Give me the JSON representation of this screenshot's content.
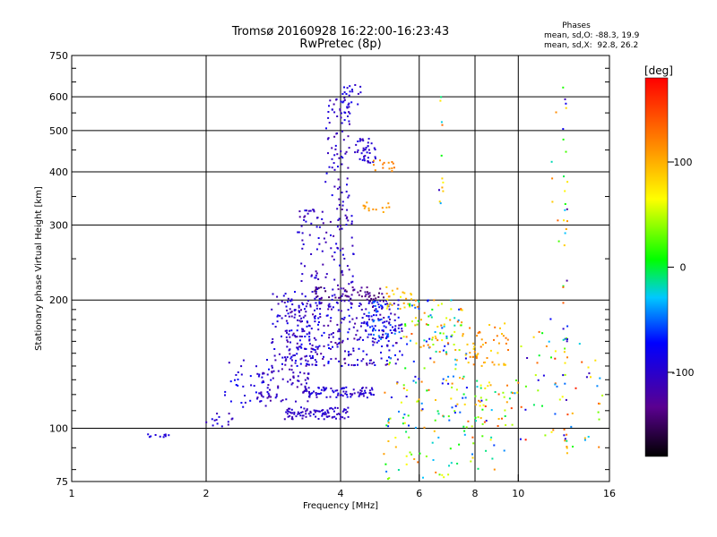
{
  "chart_data": {
    "type": "scatter",
    "title": "Tromsø 20160928 16:22:00-16:23:43",
    "subtitle": "RwPretec (8p)",
    "xlabel": "Frequency [MHz]",
    "ylabel": "Stationary phase Virtual Height [km]",
    "x_scale": "log",
    "y_scale": "log",
    "xlim": [
      1,
      16
    ],
    "ylim": [
      75,
      750
    ],
    "x_ticks": [
      1,
      2,
      4,
      6,
      8,
      10,
      16
    ],
    "x_tick_labels": [
      "1",
      "2",
      "4",
      "6",
      "8",
      "10",
      "16"
    ],
    "y_ticks": [
      75,
      100,
      200,
      300,
      400,
      500,
      600,
      750
    ],
    "y_tick_labels": [
      "75",
      "100",
      "200",
      "300",
      "400",
      "500",
      "600",
      "750"
    ],
    "grid": true,
    "stats": {
      "heading": "Phases",
      "line1": "mean, sd,O: -88.3, 19.9",
      "line2": "mean, sd,X:  92.8, 26.2"
    },
    "colorbar": {
      "label": "[deg]",
      "range": [
        -180,
        180
      ],
      "ticks": [
        100,
        0,
        -100
      ],
      "tick_labels": [
        "100",
        "0",
        "-100"
      ]
    },
    "series": [
      {
        "clusters": [
          {
            "f": [
              1.45,
              1.65
            ],
            "h": [
              95,
              97
            ],
            "n": 10,
            "ph": [
              -100,
              -85
            ]
          },
          {
            "f": [
              2.0,
              2.3
            ],
            "h": [
              100,
              112
            ],
            "n": 14,
            "ph": [
              -120,
              -80
            ]
          },
          {
            "f": [
              2.2,
              2.9
            ],
            "h": [
              112,
              145
            ],
            "n": 45,
            "ph": [
              -110,
              -70
            ]
          },
          {
            "f": [
              2.6,
              3.4
            ],
            "h": [
              115,
              140
            ],
            "n": 60,
            "ph": [
              -125,
              -95
            ]
          },
          {
            "f": [
              2.8,
              3.6
            ],
            "h": [
              140,
              210
            ],
            "n": 110,
            "ph": [
              -120,
              -80
            ]
          },
          {
            "f": [
              3.0,
              4.2
            ],
            "h": [
              105,
              112
            ],
            "n": 90,
            "ph": [
              -115,
              -90
            ]
          },
          {
            "f": [
              3.3,
              4.8
            ],
            "h": [
              118,
              125
            ],
            "n": 90,
            "ph": [
              -115,
              -80
            ]
          },
          {
            "f": [
              3.0,
              5.5
            ],
            "h": [
              140,
              200
            ],
            "n": 300,
            "ph": [
              -130,
              -70
            ]
          },
          {
            "f": [
              3.2,
              4.3
            ],
            "h": [
              200,
              330
            ],
            "n": 120,
            "ph": [
              -125,
              -85
            ]
          },
          {
            "f": [
              3.7,
              4.2
            ],
            "h": [
              330,
              600
            ],
            "n": 80,
            "ph": [
              -120,
              -80
            ]
          },
          {
            "f": [
              4.3,
              4.8
            ],
            "h": [
              420,
              480
            ],
            "n": 40,
            "ph": [
              -110,
              -85
            ]
          },
          {
            "f": [
              4.0,
              4.5
            ],
            "h": [
              570,
              640
            ],
            "n": 18,
            "ph": [
              -110,
              -80
            ]
          },
          {
            "f": [
              3.5,
              5.0
            ],
            "h": [
              200,
              215
            ],
            "n": 50,
            "ph": [
              -150,
              -120
            ]
          },
          {
            "f": [
              4.6,
              5.5
            ],
            "h": [
              160,
              200
            ],
            "n": 60,
            "ph": [
              -100,
              -40
            ]
          },
          {
            "f": [
              4.5,
              5.2
            ],
            "h": [
              320,
              340
            ],
            "n": 14,
            "ph": [
              95,
              115
            ]
          },
          {
            "f": [
              4.7,
              5.3
            ],
            "h": [
              400,
              430
            ],
            "n": 14,
            "ph": [
              110,
              130
            ]
          },
          {
            "f": [
              5.0,
              5.8
            ],
            "h": [
              190,
              215
            ],
            "n": 25,
            "ph": [
              60,
              110
            ]
          },
          {
            "f": [
              5.5,
              7.5
            ],
            "h": [
              150,
              200
            ],
            "n": 90,
            "ph": [
              -80,
              140
            ]
          },
          {
            "f": [
              5.0,
              8.5
            ],
            "h": [
              100,
              150
            ],
            "n": 100,
            "ph": [
              -100,
              140
            ]
          },
          {
            "f": [
              7.5,
              9.5
            ],
            "h": [
              140,
              180
            ],
            "n": 50,
            "ph": [
              80,
              130
            ]
          },
          {
            "f": [
              8.0,
              10.0
            ],
            "h": [
              100,
              130
            ],
            "n": 40,
            "ph": [
              -40,
              160
            ]
          },
          {
            "f": [
              5.0,
              9.5
            ],
            "h": [
              76,
              100
            ],
            "n": 50,
            "ph": [
              -60,
              140
            ]
          },
          {
            "f": [
              10.0,
              15.5
            ],
            "h": [
              90,
              170
            ],
            "n": 60,
            "ph": [
              -120,
              170
            ]
          },
          {
            "f": [
              6.6,
              6.8
            ],
            "h": [
              330,
              640
            ],
            "n": 12,
            "ph": [
              -120,
              170
            ]
          },
          {
            "f": [
              12.6,
              12.9
            ],
            "h": [
              80,
              700
            ],
            "n": 40,
            "ph": [
              -130,
              150
            ]
          },
          {
            "f": [
              11.8,
              12.6
            ],
            "h": [
              80,
              600
            ],
            "n": 8,
            "ph": [
              -100,
              160
            ]
          }
        ]
      }
    ]
  }
}
